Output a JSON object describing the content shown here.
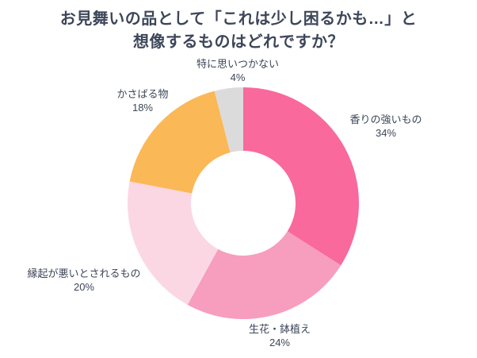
{
  "title": {
    "line1": "お見舞いの品として「これは少し困るかも…」と",
    "line2": "想像するものはどれですか？"
  },
  "colors": {
    "background": "#ffffff",
    "title_text": "#3d4659",
    "label_text": "#3d4659"
  },
  "chart_data": {
    "type": "pie",
    "subtype": "donut",
    "title": "お見舞いの品として「これは少し困るかも…」と想像するものはどれですか？",
    "start_angle_deg": 0,
    "direction": "clockwise",
    "inner_radius_ratio": 0.45,
    "grid": false,
    "legend_position": "labels-around-chart",
    "categories": [
      "香りの強いもの",
      "生花・鉢植え",
      "縁起が悪いとされるもの",
      "かさばる物",
      "特に思いつかない"
    ],
    "values": [
      34,
      24,
      20,
      18,
      4
    ],
    "slices": [
      {
        "name": "香りの強いもの",
        "value": 34,
        "pct_label": "34%",
        "color": "#f9699b"
      },
      {
        "name": "生花・鉢植え",
        "value": 24,
        "pct_label": "24%",
        "color": "#f79dbe"
      },
      {
        "name": "縁起が悪いとされるもの",
        "value": 20,
        "pct_label": "20%",
        "color": "#fbd7e4"
      },
      {
        "name": "かさばる物",
        "value": 18,
        "pct_label": "18%",
        "color": "#fbb857"
      },
      {
        "name": "特に思いつかない",
        "value": 4,
        "pct_label": "4%",
        "color": "#dbdbdb"
      }
    ]
  }
}
